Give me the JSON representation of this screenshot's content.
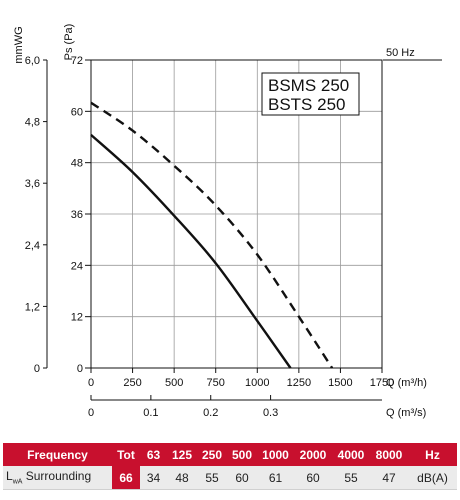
{
  "chart_data": {
    "type": "line",
    "model_lines": [
      "BSMS 250",
      "BSTS 250"
    ],
    "frequency_note": "50 Hz",
    "y_left_label": "mmWG",
    "y_left_ticks": [
      "6,0",
      "4,8",
      "3,6",
      "2,4",
      "1,2",
      "0"
    ],
    "y_label": "Ps (Pa)",
    "y_ticks": [
      "72",
      "60",
      "48",
      "36",
      "24",
      "12",
      "0"
    ],
    "ylim": [
      0,
      72
    ],
    "x_label": "Q (m³/h)",
    "x_ticks": [
      "0",
      "250",
      "500",
      "750",
      "1000",
      "1250",
      "1500",
      "1750"
    ],
    "xlim": [
      0,
      1750
    ],
    "x2_label": "Q (m³/s)",
    "x2_ticks": [
      "0",
      "0.1",
      "0.2",
      "0.3"
    ],
    "grid": true,
    "series": [
      {
        "style": "solid",
        "x": [
          0,
          250,
          500,
          750,
          1000,
          1200
        ],
        "y": [
          54.5,
          45.8,
          35.6,
          24.5,
          11.0,
          0
        ]
      },
      {
        "style": "dashed",
        "x": [
          0,
          250,
          500,
          750,
          1000,
          1250,
          1450
        ],
        "y": [
          62,
          55.5,
          47.3,
          38.0,
          26.5,
          12.0,
          0
        ]
      }
    ]
  },
  "sound_table": {
    "header": [
      "Frequency",
      "Tot",
      "63",
      "125",
      "250",
      "500",
      "1000",
      "2000",
      "4000",
      "8000",
      "Hz"
    ],
    "row_label_main": "L",
    "row_label_sub": "wA",
    "row_label_rest": " Surrounding",
    "values": [
      "66",
      "34",
      "48",
      "55",
      "60",
      "61",
      "60",
      "55",
      "47",
      "dB(A)"
    ]
  }
}
